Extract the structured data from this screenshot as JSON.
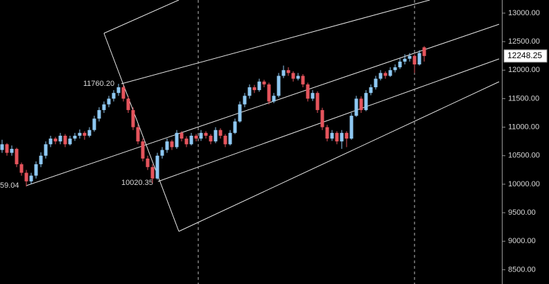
{
  "chart_data": {
    "type": "candlestick",
    "up_color": "#8ec8f2",
    "down_color": "#e5545c",
    "ylim": [
      8250,
      13230
    ],
    "yticks": [
      {
        "value": 8500,
        "label": "8500.00"
      },
      {
        "value": 9000,
        "label": "9000.00"
      },
      {
        "value": 9500,
        "label": "9500.00"
      },
      {
        "value": 10000,
        "label": "10000.00"
      },
      {
        "value": 10500,
        "label": "10500.00"
      },
      {
        "value": 11000,
        "label": "11000.00"
      },
      {
        "value": 11500,
        "label": "11500.00"
      },
      {
        "value": 12000,
        "label": "12000.00"
      },
      {
        "value": 12500,
        "label": "12500.00"
      },
      {
        "value": 13000,
        "label": "13000.00"
      }
    ],
    "last_price": 12248.25,
    "annotations": [
      "11760.20",
      "10020.35",
      "59.04"
    ],
    "ohlc": [
      [
        10600,
        10780,
        10550,
        10700
      ],
      [
        10700,
        10720,
        10500,
        10550
      ],
      [
        10550,
        10680,
        10500,
        10620
      ],
      [
        10620,
        10640,
        10300,
        10350
      ],
      [
        10350,
        10380,
        10150,
        10200
      ],
      [
        10200,
        10250,
        9959.04,
        10050
      ],
      [
        10050,
        10200,
        10000,
        10150
      ],
      [
        10150,
        10400,
        10100,
        10350
      ],
      [
        10350,
        10560,
        10300,
        10500
      ],
      [
        10500,
        10750,
        10450,
        10700
      ],
      [
        10700,
        10850,
        10650,
        10800
      ],
      [
        10800,
        10830,
        10700,
        10750
      ],
      [
        10750,
        10900,
        10700,
        10850
      ],
      [
        10850,
        10880,
        10650,
        10700
      ],
      [
        10700,
        10850,
        10680,
        10800
      ],
      [
        10800,
        10900,
        10760,
        10850
      ],
      [
        10850,
        10960,
        10800,
        10900
      ],
      [
        10900,
        10930,
        10780,
        10850
      ],
      [
        10850,
        11000,
        10820,
        10950
      ],
      [
        10950,
        11200,
        10920,
        11150
      ],
      [
        11150,
        11350,
        11100,
        11300
      ],
      [
        11300,
        11450,
        11250,
        11400
      ],
      [
        11400,
        11550,
        11350,
        11500
      ],
      [
        11500,
        11650,
        11450,
        11600
      ],
      [
        11600,
        11760.2,
        11550,
        11700
      ],
      [
        11700,
        11740,
        11450,
        11500
      ],
      [
        11500,
        11550,
        11250,
        11300
      ],
      [
        11300,
        11350,
        10950,
        11000
      ],
      [
        11000,
        11050,
        10700,
        10750
      ],
      [
        10750,
        10800,
        10400,
        10450
      ],
      [
        10450,
        10500,
        10250,
        10300
      ],
      [
        10300,
        10350,
        10020.35,
        10100
      ],
      [
        10100,
        10550,
        10080,
        10500
      ],
      [
        10500,
        10650,
        10450,
        10600
      ],
      [
        10600,
        10800,
        10550,
        10750
      ],
      [
        10750,
        10780,
        10600,
        10650
      ],
      [
        10650,
        10950,
        10620,
        10900
      ],
      [
        10900,
        10930,
        10750,
        10800
      ],
      [
        10800,
        10840,
        10650,
        10700
      ],
      [
        10700,
        10900,
        10680,
        10850
      ],
      [
        10850,
        10880,
        10750,
        10800
      ],
      [
        10800,
        10950,
        10760,
        10900
      ],
      [
        10900,
        10930,
        10800,
        10850
      ],
      [
        10850,
        10880,
        10700,
        10750
      ],
      [
        10750,
        11000,
        10720,
        10950
      ],
      [
        10950,
        10980,
        10800,
        10850
      ],
      [
        10850,
        10880,
        10650,
        10700
      ],
      [
        10700,
        10950,
        10680,
        10900
      ],
      [
        10900,
        11150,
        10880,
        11100
      ],
      [
        11100,
        11450,
        11080,
        11400
      ],
      [
        11400,
        11600,
        11350,
        11550
      ],
      [
        11550,
        11750,
        11500,
        11700
      ],
      [
        11700,
        11740,
        11600,
        11650
      ],
      [
        11650,
        11850,
        11620,
        11800
      ],
      [
        11800,
        11830,
        11700,
        11750
      ],
      [
        11750,
        11780,
        11400,
        11450
      ],
      [
        11450,
        11600,
        11420,
        11550
      ],
      [
        11550,
        11950,
        11520,
        11900
      ],
      [
        11900,
        12080,
        11860,
        12000
      ],
      [
        12000,
        12050,
        11900,
        11950
      ],
      [
        11950,
        11980,
        11800,
        11850
      ],
      [
        11850,
        11950,
        11820,
        11900
      ],
      [
        11900,
        11930,
        11700,
        11750
      ],
      [
        11750,
        11780,
        11450,
        11500
      ],
      [
        11500,
        11650,
        11460,
        11600
      ],
      [
        11600,
        11630,
        11250,
        11300
      ],
      [
        11300,
        11340,
        10950,
        11000
      ],
      [
        11000,
        11040,
        10750,
        10800
      ],
      [
        10800,
        10950,
        10760,
        10900
      ],
      [
        10900,
        10930,
        10700,
        10750
      ],
      [
        10750,
        10950,
        10620,
        10900
      ],
      [
        10900,
        10930,
        10650,
        10800
      ],
      [
        10800,
        11250,
        10780,
        11200
      ],
      [
        11200,
        11550,
        11180,
        11500
      ],
      [
        11500,
        11540,
        11250,
        11300
      ],
      [
        11300,
        11650,
        11280,
        11600
      ],
      [
        11600,
        11750,
        11560,
        11700
      ],
      [
        11700,
        11900,
        11660,
        11850
      ],
      [
        11850,
        12000,
        11820,
        11950
      ],
      [
        11950,
        11980,
        11850,
        11900
      ],
      [
        11900,
        12050,
        11880,
        12000
      ],
      [
        12000,
        12100,
        11960,
        12050
      ],
      [
        12050,
        12200,
        12020,
        12150
      ],
      [
        12150,
        12280,
        12100,
        12200
      ],
      [
        12200,
        12300,
        12150,
        12250
      ],
      [
        12250,
        12280,
        11950,
        12100
      ],
      [
        12100,
        12350,
        12080,
        12300
      ],
      [
        12400,
        12420,
        12150,
        12248.25
      ]
    ]
  }
}
